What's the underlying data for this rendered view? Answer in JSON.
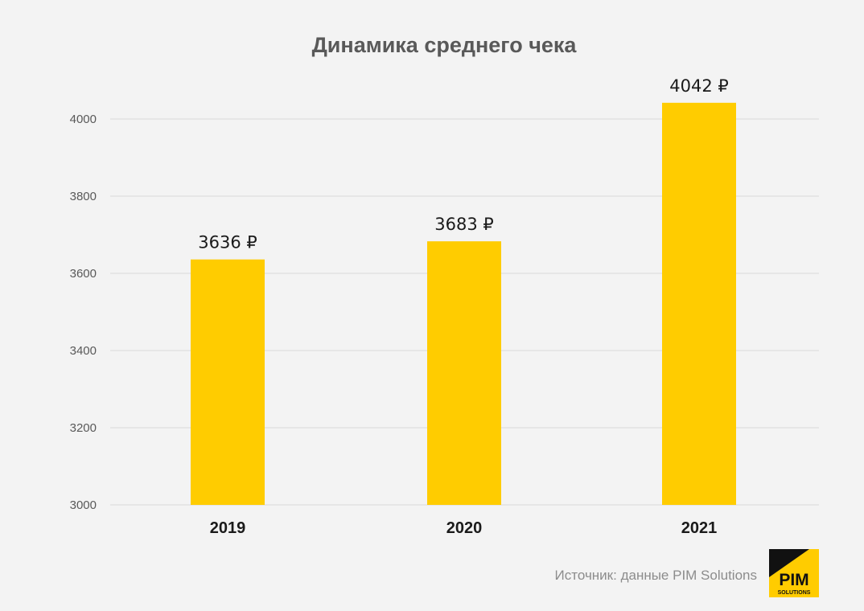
{
  "colors": {
    "background": "#f3f3f3",
    "bar": "#ffcc00",
    "grid": "#d9d9d9",
    "axis_text": "#595959",
    "label_text": "#1a1a1a",
    "source_text": "#8c8c8c"
  },
  "source": {
    "text": "Источник: данные PIM Solutions"
  },
  "logo": {
    "name": "pim-solutions-logo",
    "main_text": "PIM",
    "sub_text": "SOLUTIONS"
  },
  "chart_data": {
    "type": "bar",
    "title": "Динамика среднего чека",
    "xlabel": "",
    "ylabel": "",
    "categories": [
      "2019",
      "2020",
      "2021"
    ],
    "values": [
      3636,
      3683,
      4042
    ],
    "data_labels": [
      "3636 ₽",
      "3683 ₽",
      "4042 ₽"
    ],
    "ylim": [
      3000,
      4000
    ],
    "yticks": [
      3000,
      3200,
      3400,
      3600,
      3800,
      4000
    ],
    "grid": "horizontal",
    "legend": "none"
  }
}
